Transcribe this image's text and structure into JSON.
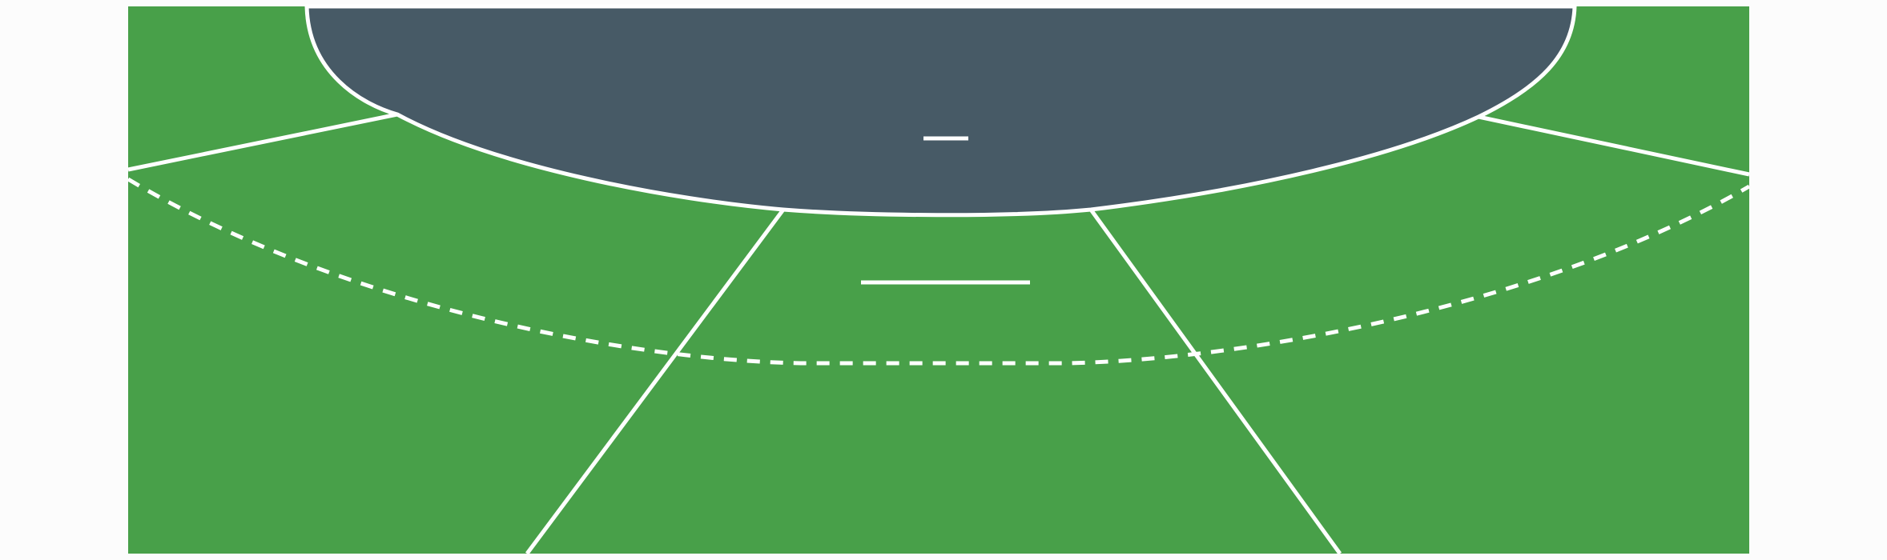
{
  "colors": {
    "page_background": "#fcfcfc",
    "field": "#48a049",
    "sky_dome": "#475a66",
    "line": "#ffffff"
  },
  "scene": {
    "type": "table-game-board",
    "regions": [
      "left-sector",
      "center-sector",
      "right-sector",
      "top-left-corner",
      "top-right-corner"
    ],
    "markers": [
      "dome-marker",
      "center-marker"
    ]
  }
}
